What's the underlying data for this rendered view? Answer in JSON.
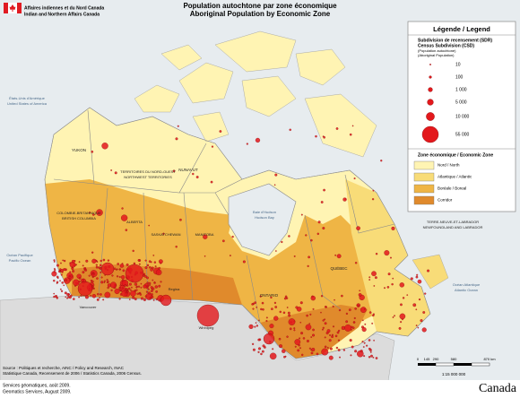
{
  "header": {
    "dept_fr": "Affaires indiennes et du Nord Canada",
    "dept_en": "Indian and Northern Affairs Canada",
    "title_fr": "Population autochtone par zone économique",
    "title_en": "Aboriginal Population by Economic Zone"
  },
  "legend": {
    "title": "Légende / Legend",
    "csd_title_fr": "Subdivision de recensement (SDR)",
    "csd_title_en": "Census Subdivision (CSD)",
    "csd_sub_fr": "(Population autochtone)",
    "csd_sub_en": "(Aboriginal Population)",
    "sizes": [
      "10",
      "100",
      "1 000",
      "5 000",
      "10 000",
      "55 000"
    ],
    "zone_title": "Zone économique / Economic Zone",
    "zones": [
      {
        "label": "Nord / North",
        "color": "#fff4b3"
      },
      {
        "label": "Atlantique / Atlantic",
        "color": "#f8dc78"
      },
      {
        "label": "Boréale / Boreal",
        "color": "#efb545"
      },
      {
        "label": "Corridor",
        "color": "#e08a2c"
      }
    ]
  },
  "labels": [
    "YUKON",
    "TERRITOIRES DU NORD-OUEST",
    "NORTHWEST TERRITORIES",
    "NUNAVUT",
    "COLOMBIE-BRITANNIQUE",
    "BRITISH COLUMBIA",
    "ALBERTA",
    "SASKATCHEWAN",
    "MANITOBA",
    "ONTARIO",
    "QUÉBEC",
    "TERRE-NEUVE-ET-LABRADOR",
    "NEWFOUNDLAND AND LABRADOR",
    "Baie d'Hudson",
    "Hudson Bay",
    "Océan Pacifique",
    "Pacific Ocean",
    "Océan Atlantique",
    "Atlantic Ocean",
    "États-Unis d'Amérique",
    "United States of America",
    "Vancouver",
    "Regina",
    "Winnipeg"
  ],
  "source": [
    "Source : Politiques et recherche, AINC / Policy and Research, INAC",
    "Statistique Canada, Recensement de 2006 / Statistics Canada, 2006 Census."
  ],
  "credit": [
    "Services géomatiques, août 2009.",
    "Geomatics Services, August 2009."
  ],
  "scale": {
    "ticks": [
      "0",
      "145",
      "290",
      "580",
      "870 km"
    ],
    "ratio": "1:15 000 000"
  },
  "wordmark": "Canada"
}
